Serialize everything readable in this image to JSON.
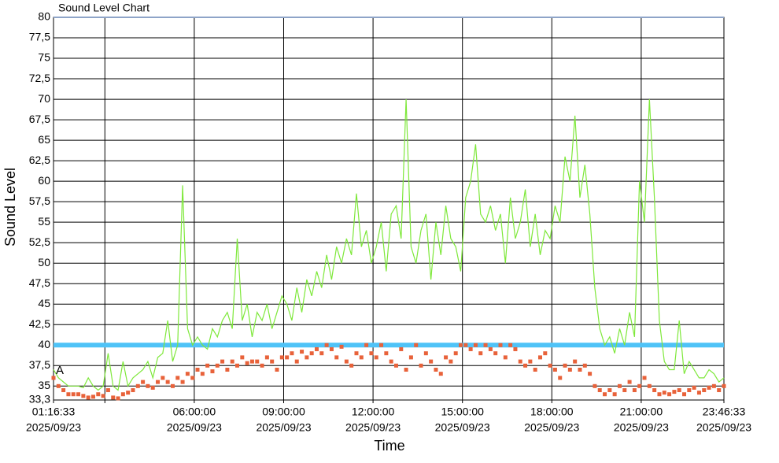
{
  "chart_data": {
    "type": "line",
    "title": "Sound Level Chart",
    "x_label": "Time",
    "y_label": "Sound Level",
    "date": "2025/09/23",
    "marker_label": "A",
    "threshold": 40,
    "threshold_color": "#4fc3f7",
    "grid": true,
    "x": [
      "01:16:33",
      "01:26:33",
      "01:36:33",
      "01:46:33",
      "01:56:33",
      "02:06:33",
      "02:16:33",
      "02:26:33",
      "02:36:33",
      "02:46:33",
      "02:56:33",
      "03:06:33",
      "03:16:33",
      "03:26:33",
      "03:36:33",
      "03:46:33",
      "03:56:33",
      "04:06:33",
      "04:16:33",
      "04:26:33",
      "04:36:33",
      "04:46:33",
      "04:56:33",
      "05:06:33",
      "05:16:33",
      "05:26:33",
      "05:36:33",
      "05:46:33",
      "05:56:33",
      "06:06:33",
      "06:16:33",
      "06:26:33",
      "06:36:33",
      "06:46:33",
      "06:56:33",
      "07:06:33",
      "07:16:33",
      "07:26:33",
      "07:36:33",
      "07:46:33",
      "07:56:33",
      "08:06:33",
      "08:16:33",
      "08:26:33",
      "08:36:33",
      "08:46:33",
      "08:56:33",
      "09:06:33",
      "09:16:33",
      "09:26:33",
      "09:36:33",
      "09:46:33",
      "09:56:33",
      "10:06:33",
      "10:16:33",
      "10:26:33",
      "10:36:33",
      "10:46:33",
      "10:56:33",
      "11:06:33",
      "11:16:33",
      "11:26:33",
      "11:36:33",
      "11:46:33",
      "11:56:33",
      "12:06:33",
      "12:16:33",
      "12:26:33",
      "12:36:33",
      "12:46:33",
      "12:56:33",
      "13:06:33",
      "13:16:33",
      "13:26:33",
      "13:36:33",
      "13:46:33",
      "13:56:33",
      "14:06:33",
      "14:16:33",
      "14:26:33",
      "14:36:33",
      "14:46:33",
      "14:56:33",
      "15:06:33",
      "15:16:33",
      "15:26:33",
      "15:36:33",
      "15:46:33",
      "15:56:33",
      "16:06:33",
      "16:16:33",
      "16:26:33",
      "16:36:33",
      "16:46:33",
      "16:56:33",
      "17:06:33",
      "17:16:33",
      "17:26:33",
      "17:36:33",
      "17:46:33",
      "17:56:33",
      "18:06:33",
      "18:16:33",
      "18:26:33",
      "18:36:33",
      "18:46:33",
      "18:56:33",
      "19:06:33",
      "19:16:33",
      "19:26:33",
      "19:36:33",
      "19:46:33",
      "19:56:33",
      "20:06:33",
      "20:16:33",
      "20:26:33",
      "20:36:33",
      "20:46:33",
      "20:56:33",
      "21:06:33",
      "21:16:33",
      "21:26:33",
      "21:36:33",
      "21:46:33",
      "21:56:33",
      "22:06:33",
      "22:16:33",
      "22:26:33",
      "22:36:33",
      "22:46:33",
      "22:56:33",
      "23:06:33",
      "23:16:33",
      "23:26:33",
      "23:36:33",
      "23:46:33"
    ],
    "series": [
      {
        "color": "#7ee83a",
        "style": "line",
        "values": [
          37,
          36,
          35.5,
          35,
          35,
          35,
          34.8,
          36,
          35,
          34.5,
          35,
          39,
          35,
          34.5,
          38,
          35,
          36,
          36.5,
          37,
          38,
          36,
          38.5,
          39,
          43,
          38,
          40,
          59.5,
          42,
          40,
          41,
          40,
          39.5,
          42,
          41,
          43,
          44,
          42,
          53,
          43,
          45,
          41,
          44,
          43,
          45,
          42,
          44,
          46,
          45,
          43,
          47,
          44,
          48,
          46,
          49,
          47,
          51,
          48,
          52,
          50,
          53,
          51,
          58.5,
          52,
          54,
          50,
          52,
          55,
          49,
          56,
          57,
          53,
          70,
          52,
          50,
          54,
          56,
          48,
          55,
          51,
          57,
          53,
          52,
          49,
          58,
          60,
          64.5,
          56,
          55,
          57,
          54,
          56,
          50,
          58,
          53,
          55,
          59,
          52,
          56,
          51,
          54,
          53,
          57,
          55,
          63,
          60,
          68,
          58,
          62,
          56,
          47,
          42,
          40,
          41,
          39,
          42,
          40,
          44,
          41,
          60,
          55,
          70,
          58,
          43,
          38,
          37,
          37,
          43,
          36.5,
          38,
          37,
          36,
          36,
          37,
          36.5,
          35.5,
          36
        ]
      },
      {
        "color": "#e8623a",
        "style": "markers",
        "values": [
          36,
          35,
          34.5,
          34,
          34,
          34,
          33.8,
          33.6,
          33.7,
          34,
          33.8,
          34.5,
          33.6,
          33.5,
          34,
          34.2,
          34.5,
          35,
          35.5,
          35,
          34.8,
          35.5,
          36,
          35.5,
          35,
          36,
          35.5,
          36.5,
          36,
          37,
          36.5,
          37.5,
          36.8,
          37.5,
          38,
          37,
          38,
          37.5,
          38.5,
          37.8,
          38,
          38,
          37.5,
          38.5,
          38,
          37,
          38.5,
          38.5,
          39,
          38,
          39.2,
          38.5,
          39,
          39.5,
          39,
          40,
          39.5,
          38.5,
          39.8,
          38,
          37.5,
          39,
          38.5,
          40,
          39,
          38.5,
          40,
          39,
          38,
          37.5,
          39.5,
          37,
          38.5,
          40,
          37.5,
          39,
          38,
          37,
          36.5,
          38.5,
          38,
          39,
          40,
          40,
          39.5,
          40,
          39,
          40,
          39.5,
          39,
          40,
          38.5,
          40,
          39.5,
          38,
          37.5,
          38,
          37,
          38.5,
          39,
          37.5,
          37,
          36,
          37.5,
          37,
          38,
          37,
          37.5,
          36.5,
          35,
          34.5,
          34,
          34.5,
          34,
          35,
          34.5,
          35.5,
          34.5,
          35,
          36,
          35,
          34.5,
          34,
          34.2,
          34,
          34.3,
          34.5,
          34,
          34.5,
          34.8,
          34.2,
          34.5,
          34.8,
          35,
          34.5,
          35
        ]
      }
    ],
    "xlim": [
      "01:16:33",
      "23:46:33"
    ],
    "xticks": [
      "01:16:33",
      {
        "value": "03:00:00",
        "label": null
      },
      "06:00:00",
      "09:00:00",
      "12:00:00",
      "15:00:00",
      "18:00:00",
      "21:00:00",
      "23:46:33"
    ],
    "ylim": [
      33.3,
      80
    ],
    "yticks": [
      {
        "value": 33.3,
        "label": "33,3"
      },
      35,
      {
        "value": 37.5,
        "label": "37,5"
      },
      40,
      {
        "value": 42.5,
        "label": "42,5"
      },
      45,
      {
        "value": 47.5,
        "label": "47,5"
      },
      50,
      {
        "value": 52.5,
        "label": "52,5"
      },
      55,
      {
        "value": 57.5,
        "label": "57,5"
      },
      60,
      {
        "value": 62.5,
        "label": "62,5"
      },
      65,
      {
        "value": 67.5,
        "label": "67,5"
      },
      70,
      {
        "value": 72.5,
        "label": "72,5"
      },
      75,
      {
        "value": 77.5,
        "label": "77,5"
      },
      80
    ]
  }
}
